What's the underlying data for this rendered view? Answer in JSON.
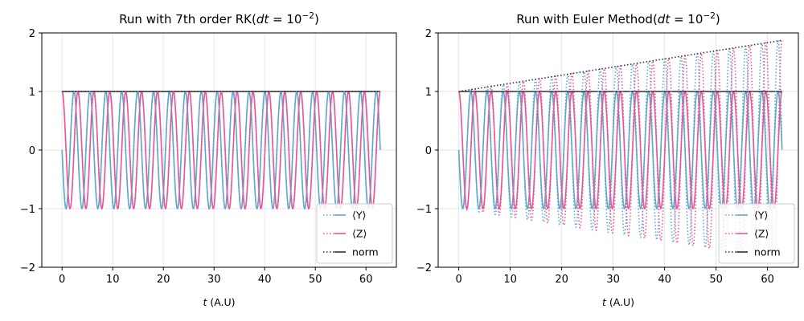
{
  "colors": {
    "Y": "#5fa8c8",
    "Z": "#e8569a",
    "norm": "#333333"
  },
  "chart_data": [
    {
      "type": "line",
      "title": "Run with 7th order RK(dt = 10⁻²)",
      "title_parts": {
        "text": "Run with 7th order RK(",
        "var": "dt",
        "eq": " = 10",
        "sup": "−2",
        "close": ")"
      },
      "xlabel_var": "t",
      "xlabel_unit": " (A.U)",
      "xlim": [
        -4,
        66
      ],
      "ylim": [
        -2,
        2
      ],
      "xticks": [
        0,
        10,
        20,
        30,
        40,
        50,
        60
      ],
      "yticks": [
        -2,
        -1,
        0,
        1,
        2
      ],
      "grid": true,
      "legend_position": "lower right",
      "x_range": [
        0,
        62.83
      ],
      "omega": 2.0,
      "method": "exact",
      "euler_growth": 0,
      "series": [
        {
          "name": "⟨Y⟩",
          "key": "Y",
          "expression": "-sin(2t)",
          "style": "solid + dotted"
        },
        {
          "name": "⟨Z⟩",
          "key": "Z",
          "expression": "cos(2t)",
          "style": "solid + dotted"
        },
        {
          "name": "norm",
          "key": "norm",
          "expression": "1",
          "style": "solid + dotted"
        }
      ]
    },
    {
      "type": "line",
      "title": "Run with Euler Method(dt = 10⁻²)",
      "title_parts": {
        "text": "Run with Euler Method(",
        "var": "dt",
        "eq": " = 10",
        "sup": "−2",
        "close": ")"
      },
      "xlabel_var": "t",
      "xlabel_unit": " (A.U)",
      "xlim": [
        -4,
        66
      ],
      "ylim": [
        -2,
        2
      ],
      "xticks": [
        0,
        10,
        20,
        30,
        40,
        50,
        60
      ],
      "yticks": [
        -2,
        -1,
        0,
        1,
        2
      ],
      "grid": true,
      "legend_position": "lower right",
      "x_range": [
        0,
        62.83
      ],
      "omega": 2.0,
      "method": "euler",
      "euler_growth": 0.0139,
      "series": [
        {
          "name": "⟨Y⟩",
          "key": "Y",
          "expression": "-sin(2t) exact (solid), Euler growing amplitude (dotted)",
          "style": "solid + dotted"
        },
        {
          "name": "⟨Z⟩",
          "key": "Z",
          "expression": "cos(2t) exact (solid), Euler growing amplitude (dotted)",
          "style": "solid + dotted"
        },
        {
          "name": "norm",
          "key": "norm",
          "expression": "1 exact (solid), Euler norm grows to ~1.87 (dotted)",
          "style": "solid + dotted"
        }
      ]
    }
  ]
}
